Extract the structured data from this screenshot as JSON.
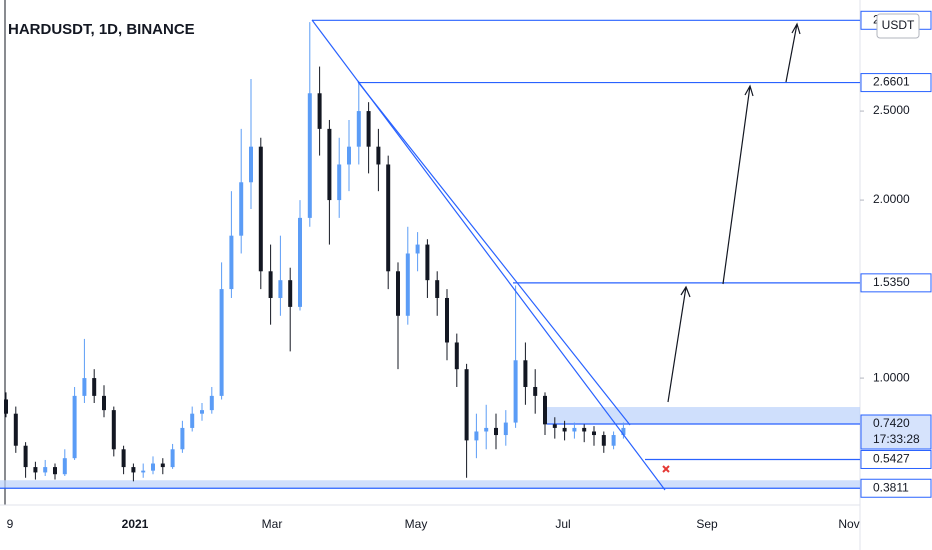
{
  "chart_data": {
    "type": "candlestick",
    "title": "HARDUSDT, 1D, BINANCE",
    "currency": "USDT",
    "x_labels": [
      "9",
      "2021",
      "Mar",
      "May",
      "Jul",
      "Sep",
      "Nov"
    ],
    "ylim": [
      0.287,
      3.124
    ],
    "yticks": [
      {
        "value": 1,
        "label": "1.0000"
      },
      {
        "value": 2,
        "label": "2.0000"
      },
      {
        "value": 2.5,
        "label": "2.5000"
      }
    ],
    "levels": [
      {
        "value": 3.01,
        "label": "2"
      },
      {
        "value": 2.6601,
        "label": "2.6601"
      },
      {
        "value": 1.535,
        "label": "1.5350"
      },
      {
        "value": 0.742,
        "label": "0.7420"
      },
      {
        "value": 0.5427,
        "label": "0.5427"
      },
      {
        "value": 0.3811,
        "label": "0.3811"
      }
    ],
    "countdown": "17:33:28",
    "up_color": "#5b9cf6",
    "down_color": "#131722",
    "level_color": "#2962ff",
    "candles": {
      "open": [
        0.88,
        0.8,
        0.62,
        0.5,
        0.47,
        0.5,
        0.46,
        0.55,
        0.9,
        1.0,
        0.9,
        0.82,
        0.6,
        0.5,
        0.47,
        0.48,
        0.52,
        0.5,
        0.6,
        0.72,
        0.8,
        0.82,
        0.9,
        1.5,
        1.8,
        2.1,
        2.3,
        1.6,
        1.45,
        1.55,
        1.4,
        1.9,
        2.6,
        2.4,
        2.0,
        2.2,
        2.3,
        2.5,
        2.3,
        2.2,
        1.6,
        1.35,
        1.7,
        1.75,
        1.55,
        1.45,
        1.2,
        1.05,
        0.65,
        0.7,
        0.72,
        0.68,
        0.75,
        1.1,
        0.95,
        0.9,
        0.74,
        0.72,
        0.7,
        0.72,
        0.7,
        0.68,
        0.62,
        0.68
      ],
      "high": [
        0.92,
        0.84,
        0.64,
        0.53,
        0.54,
        0.52,
        0.6,
        0.95,
        1.22,
        1.05,
        0.96,
        0.84,
        0.62,
        0.52,
        0.52,
        0.56,
        0.55,
        0.63,
        0.76,
        0.84,
        0.86,
        0.95,
        1.65,
        2.05,
        2.4,
        2.68,
        2.35,
        1.75,
        1.8,
        1.62,
        2.0,
        3.0,
        2.75,
        2.45,
        2.35,
        2.45,
        2.67,
        2.55,
        2.4,
        2.25,
        1.65,
        1.85,
        1.82,
        1.78,
        1.6,
        1.5,
        1.25,
        1.08,
        0.8,
        0.85,
        0.8,
        0.82,
        1.52,
        1.2,
        1.05,
        0.92,
        0.78,
        0.76,
        0.75,
        0.74,
        0.73,
        0.7,
        0.7,
        0.75
      ],
      "low": [
        0.78,
        0.58,
        0.44,
        0.43,
        0.45,
        0.43,
        0.45,
        0.54,
        0.86,
        0.86,
        0.78,
        0.56,
        0.46,
        0.42,
        0.44,
        0.46,
        0.46,
        0.49,
        0.58,
        0.7,
        0.76,
        0.8,
        0.88,
        1.45,
        1.7,
        1.95,
        1.5,
        1.3,
        1.35,
        1.15,
        1.38,
        1.85,
        2.25,
        1.75,
        1.9,
        2.05,
        2.2,
        2.15,
        2.05,
        1.5,
        1.05,
        1.3,
        1.6,
        1.45,
        1.35,
        1.1,
        0.95,
        0.44,
        0.55,
        0.6,
        0.6,
        0.62,
        0.72,
        0.85,
        0.8,
        0.68,
        0.66,
        0.65,
        0.66,
        0.64,
        0.62,
        0.58,
        0.6,
        0.66
      ],
      "close": [
        0.8,
        0.62,
        0.5,
        0.47,
        0.5,
        0.46,
        0.55,
        0.9,
        1.0,
        0.9,
        0.82,
        0.6,
        0.5,
        0.47,
        0.48,
        0.52,
        0.5,
        0.6,
        0.72,
        0.8,
        0.82,
        0.9,
        1.5,
        1.8,
        2.1,
        2.3,
        1.6,
        1.45,
        1.55,
        1.4,
        1.9,
        2.6,
        2.4,
        2.0,
        2.2,
        2.3,
        2.5,
        2.3,
        2.2,
        1.6,
        1.35,
        1.7,
        1.75,
        1.55,
        1.45,
        1.2,
        1.05,
        0.65,
        0.7,
        0.72,
        0.68,
        0.75,
        1.1,
        0.95,
        0.9,
        0.74,
        0.72,
        0.7,
        0.72,
        0.7,
        0.68,
        0.62,
        0.68,
        0.72
      ]
    }
  }
}
